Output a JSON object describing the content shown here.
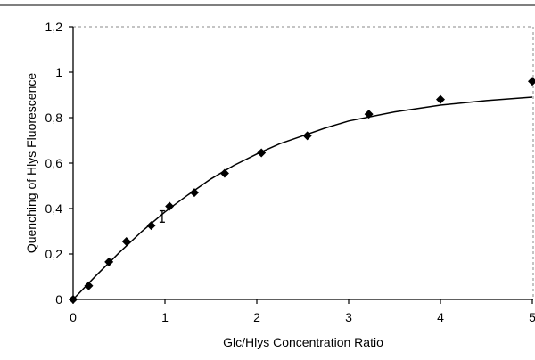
{
  "chart_data": {
    "type": "scatter",
    "title": "",
    "xlabel": "Glc/Hlys Concentration Ratio",
    "ylabel": "Quenching of Hlys Fluorescence",
    "xlim": [
      0,
      5
    ],
    "ylim": [
      0,
      1.2
    ],
    "x_ticks": [
      "0",
      "1",
      "2",
      "3",
      "4",
      "5"
    ],
    "y_ticks": [
      "0",
      "0,2",
      "0,4",
      "0,6",
      "0,8",
      "1",
      "1,2"
    ],
    "grid": false,
    "legend": "none",
    "marker": "diamond",
    "colors": {
      "marker": "#000000",
      "line": "#000000",
      "background": "#ffffff"
    },
    "points": [
      {
        "x": 0,
        "y": 0
      },
      {
        "x": 0.17,
        "y": 0.06
      },
      {
        "x": 0.39,
        "y": 0.165
      },
      {
        "x": 0.58,
        "y": 0.255
      },
      {
        "x": 0.85,
        "y": 0.325
      },
      {
        "x": 1.05,
        "y": 0.41
      },
      {
        "x": 1.32,
        "y": 0.47
      },
      {
        "x": 1.65,
        "y": 0.555
      },
      {
        "x": 2.05,
        "y": 0.645
      },
      {
        "x": 2.55,
        "y": 0.72
      },
      {
        "x": 3.22,
        "y": 0.815
      },
      {
        "x": 4.0,
        "y": 0.88
      },
      {
        "x": 5.0,
        "y": 0.96
      }
    ],
    "error_bar": {
      "x": 0.97,
      "y": 0.365,
      "low": 0.34,
      "high": 0.39
    },
    "fit_curve": [
      {
        "x": 0,
        "y": 0
      },
      {
        "x": 0.25,
        "y": 0.105
      },
      {
        "x": 0.5,
        "y": 0.205
      },
      {
        "x": 0.75,
        "y": 0.3
      },
      {
        "x": 1.0,
        "y": 0.385
      },
      {
        "x": 1.25,
        "y": 0.46
      },
      {
        "x": 1.5,
        "y": 0.53
      },
      {
        "x": 1.75,
        "y": 0.59
      },
      {
        "x": 2.0,
        "y": 0.64
      },
      {
        "x": 2.25,
        "y": 0.685
      },
      {
        "x": 2.5,
        "y": 0.72
      },
      {
        "x": 2.75,
        "y": 0.755
      },
      {
        "x": 3.0,
        "y": 0.785
      },
      {
        "x": 3.5,
        "y": 0.825
      },
      {
        "x": 4.0,
        "y": 0.855
      },
      {
        "x": 4.5,
        "y": 0.875
      },
      {
        "x": 5.0,
        "y": 0.89
      }
    ]
  }
}
